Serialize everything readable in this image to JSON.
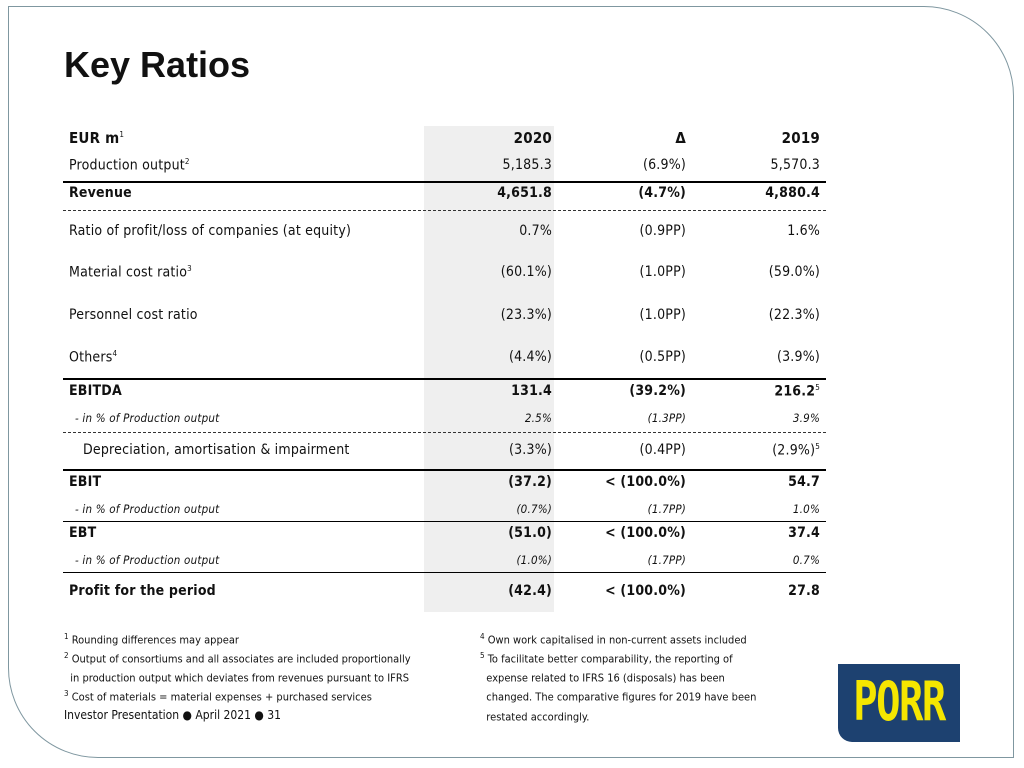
{
  "title": "Key Ratios",
  "table": {
    "header": {
      "label": "EUR m",
      "label_sup": "1",
      "c1": "2020",
      "c2": "Δ",
      "c3": "2019"
    },
    "rows": [
      {
        "label": "Production output",
        "sup": "2",
        "c1": "5,185.3",
        "c2": "(6.9%)",
        "c3": "5,570.3"
      },
      {
        "label": "Revenue",
        "c1": "4,651.8",
        "c2": "(4.7%)",
        "c3": "4,880.4",
        "bold": true
      },
      {
        "label": "Ratio of profit/loss of companies (at equity)",
        "c1": "0.7%",
        "c2": "(0.9PP)",
        "c3": "1.6%"
      },
      {
        "label": "Material cost ratio",
        "sup": "3",
        "c1": "(60.1%)",
        "c2": "(1.0PP)",
        "c3": "(59.0%)"
      },
      {
        "label": "Personnel cost ratio",
        "c1": "(23.3%)",
        "c2": "(1.0PP)",
        "c3": "(22.3%)"
      },
      {
        "label": "Others",
        "sup": "4",
        "c1": "(4.4%)",
        "c2": "(0.5PP)",
        "c3": "(3.9%)"
      },
      {
        "label": "EBITDA",
        "c1": "131.4",
        "c2": "(39.2%)",
        "c3": "216.2",
        "c3_sup": "5",
        "bold": true
      },
      {
        "label": "- in % of Production output",
        "c1": "2.5%",
        "c2": "(1.3PP)",
        "c3": "3.9%",
        "sub": true
      },
      {
        "label": "Depreciation, amortisation & impairment",
        "c1": "(3.3%)",
        "c2": "(0.4PP)",
        "c3": "(2.9%)",
        "c3_sup": "5",
        "indent": true
      },
      {
        "label": "EBIT",
        "c1": "(37.2)",
        "c2": "< (100.0%)",
        "c3": "54.7",
        "bold": true
      },
      {
        "label": "- in % of Production output",
        "c1": "(0.7%)",
        "c2": "(1.7PP)",
        "c3": "1.0%",
        "sub": true
      },
      {
        "label": "EBT",
        "c1": "(51.0)",
        "c2": "< (100.0%)",
        "c3": "37.4",
        "bold": true
      },
      {
        "label": "- in % of Production output",
        "c1": "(1.0%)",
        "c2": "(1.7PP)",
        "c3": "0.7%",
        "sub": true
      },
      {
        "label": "Profit for the period",
        "c1": "(42.4)",
        "c2": "< (100.0%)",
        "c3": "27.8",
        "bold": true
      }
    ]
  },
  "footnotes_left": [
    {
      "sup": "1",
      "text": "Rounding differences may appear"
    },
    {
      "sup": "2",
      "text": "Output of consortiums and all associates are included proportionally"
    },
    {
      "sup": "",
      "text": "in production output which deviates from revenues pursuant to IFRS"
    },
    {
      "sup": "3",
      "text": "Cost of materials = material expenses + purchased services"
    }
  ],
  "footnotes_right": [
    {
      "sup": "4",
      "text": "Own work capitalised in non-current assets included"
    },
    {
      "sup": "5",
      "text": "To facilitate better comparability, the reporting of"
    },
    {
      "sup": "",
      "text": "expense related to IFRS 16 (disposals) has been"
    },
    {
      "sup": "",
      "text": "changed. The comparative figures for 2019 have been"
    },
    {
      "sup": "",
      "text": "restated accordingly."
    }
  ],
  "footer": "Investor Presentation ● April 2021 ● 31",
  "logo": {
    "text": "PORR",
    "bg": "#1d4170",
    "fg": "#f5e600"
  }
}
